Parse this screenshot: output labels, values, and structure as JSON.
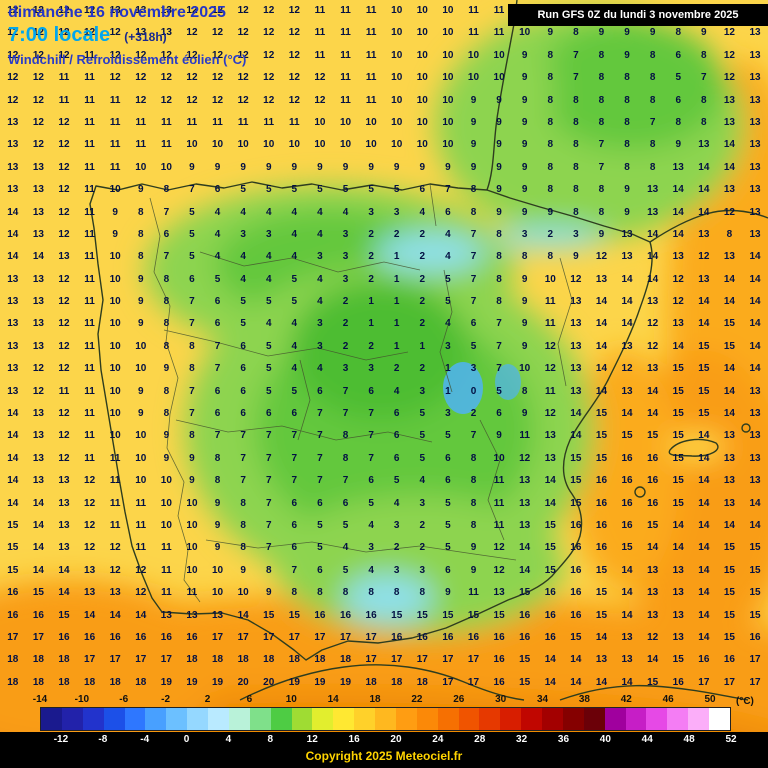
{
  "header": {
    "date": "dimanche 16 novembre 2025",
    "time": "7:00 locale",
    "offset": "(+318h)",
    "variable": "Windchill / Refroidissement éolien (°C)",
    "run": "Run GFS 0Z du lundi 3 novembre 2025"
  },
  "footer": {
    "copyright": "Copyright 2025 Meteociel.fr",
    "unit": "(°C)"
  },
  "scale": {
    "min": -14,
    "max": 52,
    "step": 2,
    "top_labels": [
      "-14",
      "-10",
      "-6",
      "-2",
      "2",
      "6",
      "10",
      "14",
      "18",
      "22",
      "26",
      "30",
      "34",
      "38",
      "42",
      "46",
      "50"
    ],
    "bottom_labels": [
      "-12",
      "-8",
      "-4",
      "0",
      "4",
      "8",
      "12",
      "16",
      "20",
      "24",
      "28",
      "32",
      "36",
      "40",
      "44",
      "48",
      "52"
    ],
    "colors": [
      "#1a1a8e",
      "#2222aa",
      "#2233cc",
      "#1c50e8",
      "#2e77ff",
      "#48a0ff",
      "#6cc0ff",
      "#95d8ff",
      "#b9eaff",
      "#b9f2d9",
      "#7fe08a",
      "#4ecc44",
      "#9fdc33",
      "#e2ee2e",
      "#ffe832",
      "#ffd12a",
      "#ffb81f",
      "#ff9d12",
      "#fb8908",
      "#f67002",
      "#f05400",
      "#e63900",
      "#d81e00",
      "#c00600",
      "#a30000",
      "#850000",
      "#6b0008",
      "#a0009e",
      "#c61ec6",
      "#e649e6",
      "#f47df4",
      "#fbaef9",
      "#ffffff"
    ]
  },
  "map": {
    "field_colors": {
      "base_yellow": "#fcd54a",
      "yellow_light": "#ffe44e",
      "green_light": "#8dd450",
      "green_mid": "#64c83c",
      "green_deep": "#4dbd33",
      "cyan": "#8fe0ea",
      "blue": "#4fb3f3",
      "orange_light": "#fbab1c",
      "orange_mid": "#f99d13",
      "orange_deep": "#ef8a05"
    },
    "value_color": "#031043",
    "coast_color": "#2e3d1f"
  },
  "grid": {
    "rows": [
      "12 12 12 12 13 13 13 12 12 12 12 12 11 11 11 10 10 10 11 11 11 10 10 10 10 10 10 11 12 13",
      "12 12 12 12 12 13 13 12 12 12 12 12 11 11 11 10 10 10 11 11 10 9 8 9 9 9 8 9 12 13",
      "12 12 12 11 12 12 12 12 12 12 12 12 11 11 11 10 10 10 10 10 9 8 7 8 9 8 6 8 12 13",
      "12 12 11 11 12 12 12 12 12 12 12 12 12 11 11 10 10 10 10 10 9 8 7 8 8 8 5 7 12 13",
      "12 12 11 11 11 12 12 12 12 12 12 12 12 11 11 10 10 10 9 9 9 8 8 8 8 8 6 8 13 13",
      "13 12 12 11 11 11 11 11 11 11 11 11 10 10 10 10 10 10 9 9 9 8 8 8 8 7 8 8 13 13",
      "13 12 12 11 11 11 11 10 10 10 10 10 10 10 10 10 10 10 9 9 9 8 8 7 8 8 9 13 14 13",
      "13 13 12 11 11 10 10 9 9 9 9 9 9 9 9 9 9 9 9 9 9 8 8 7 8 8 13 14 14 13",
      "13 13 12 11 10 9 8 7 6 5 5 5 5 5 5 5 6 7 8 9 9 8 8 8 9 13 14 14 13 13",
      "14 13 12 11 9 8 7 5 4 4 4 4 4 4 3 3 4 6 8 9 9 9 8 8 9 13 14 14 12 13",
      "14 13 12 11 9 8 6 5 4 3 3 4 4 3 2 2 2 4 7 8 3 2 3 9 13 14 14 13 8 13",
      "14 14 13 11 10 8 7 5 4 4 4 4 3 3 2 1 2 4 7 8 8 8 9 12 13 14 13 12 13 14",
      "13 13 12 11 10 9 8 6 5 4 4 5 4 3 2 1 2 5 7 8 9 10 12 13 14 14 12 13 14 14",
      "13 13 12 11 10 9 8 7 6 5 5 5 4 2 1 1 2 5 7 8 9 11 13 14 14 13 12 14 14 14",
      "13 13 12 11 10 9 8 7 6 5 4 4 3 2 1 1 2 4 6 7 9 11 13 14 14 12 13 14 15 14",
      "13 13 12 11 10 10 8 8 7 6 5 4 3 2 2 1 1 3 5 7 9 12 13 14 13 12 14 15 15 14",
      "13 12 12 11 10 10 9 8 7 6 5 4 4 3 3 2 2 1 3 7 10 12 13 14 12 13 15 15 14 14",
      "13 12 11 11 10 9 8 7 6 6 5 5 6 7 6 4 3 1 0 5 8 11 13 14 13 14 15 15 14 13",
      "14 13 12 11 10 9 8 7 6 6 6 6 7 7 7 6 5 3 2 6 9 12 14 15 14 14 15 15 14 13",
      "14 13 12 11 10 10 9 8 7 7 7 7 7 8 7 6 5 5 7 9 11 13 14 15 15 15 15 14 13 13",
      "14 13 12 11 11 10 9 9 8 7 7 7 7 8 7 6 5 6 8 10 12 13 15 15 16 16 15 14 13 13",
      "14 13 13 12 11 10 10 9 8 7 7 7 7 7 6 5 4 6 8 11 13 14 15 16 16 16 15 14 13 13",
      "14 14 13 12 11 11 10 10 9 8 7 6 6 6 5 4 3 5 8 11 13 14 15 16 16 16 15 14 13 14",
      "15 14 13 12 11 11 10 10 9 8 7 6 5 5 4 3 2 5 8 11 13 15 16 16 16 15 14 14 14 14",
      "15 14 13 12 12 11 11 10 9 8 7 6 5 4 3 2 2 5 9 12 14 15 16 16 15 14 14 14 15 15",
      "15 14 14 13 12 12 11 10 10 9 8 7 6 5 4 3 3 6 9 12 14 15 16 15 14 13 13 14 15 15",
      "16 15 14 13 13 12 11 11 10 10 9 8 8 8 8 8 8 9 11 13 15 16 16 15 14 13 13 14 15 15",
      "16 16 15 14 14 14 13 13 13 14 15 15 16 16 16 15 15 15 15 15 16 16 16 15 14 13 13 14 15 15",
      "17 17 16 16 16 16 16 16 17 17 17 17 17 17 17 16 16 16 16 16 16 16 15 14 13 12 13 14 15 16",
      "18 18 18 17 17 17 17 18 18 18 18 18 18 18 17 17 17 17 17 16 15 14 14 13 13 14 15 16 16 17",
      "18 18 18 18 18 18 19 19 19 20 20 19 19 19 18 18 18 17 17 16 15 14 14 14 14 15 16 17 17 17"
    ]
  }
}
